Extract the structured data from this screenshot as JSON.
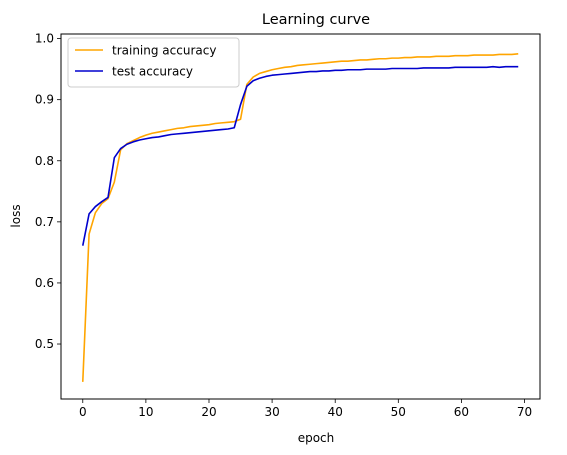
{
  "chart_data": {
    "type": "line",
    "title": "Learning curve",
    "xlabel": "epoch",
    "ylabel": "loss",
    "xlim": [
      -3.45,
      72.45
    ],
    "ylim": [
      0.41,
      1.0075
    ],
    "x_ticks": [
      0,
      10,
      20,
      30,
      40,
      50,
      60,
      70
    ],
    "y_ticks": [
      0.5,
      0.6,
      0.7,
      0.8,
      0.9,
      1.0
    ],
    "y_tick_labels": [
      "0.5",
      "0.6",
      "0.7",
      "0.8",
      "0.9",
      "1.0"
    ],
    "grid": false,
    "legend_position": "top-left",
    "x": [
      0,
      1,
      2,
      3,
      4,
      5,
      6,
      7,
      8,
      9,
      10,
      11,
      12,
      13,
      14,
      15,
      16,
      17,
      18,
      19,
      20,
      21,
      22,
      23,
      24,
      25,
      26,
      27,
      28,
      29,
      30,
      31,
      32,
      33,
      34,
      35,
      36,
      37,
      38,
      39,
      40,
      41,
      42,
      43,
      44,
      45,
      46,
      47,
      48,
      49,
      50,
      51,
      52,
      53,
      54,
      55,
      56,
      57,
      58,
      59,
      60,
      61,
      62,
      63,
      64,
      65,
      66,
      67,
      68,
      69
    ],
    "series": [
      {
        "name": "training accuracy",
        "color": "#FFA500",
        "values": [
          0.438,
          0.68,
          0.715,
          0.73,
          0.738,
          0.765,
          0.818,
          0.828,
          0.833,
          0.838,
          0.842,
          0.845,
          0.847,
          0.849,
          0.851,
          0.853,
          0.854,
          0.856,
          0.857,
          0.858,
          0.859,
          0.861,
          0.862,
          0.863,
          0.864,
          0.868,
          0.925,
          0.937,
          0.943,
          0.946,
          0.949,
          0.951,
          0.953,
          0.954,
          0.956,
          0.957,
          0.958,
          0.959,
          0.96,
          0.961,
          0.962,
          0.963,
          0.963,
          0.964,
          0.965,
          0.965,
          0.966,
          0.967,
          0.967,
          0.968,
          0.968,
          0.969,
          0.969,
          0.97,
          0.97,
          0.97,
          0.971,
          0.971,
          0.971,
          0.972,
          0.972,
          0.972,
          0.973,
          0.973,
          0.973,
          0.973,
          0.974,
          0.974,
          0.974,
          0.975
        ]
      },
      {
        "name": "test accuracy",
        "color": "#0000CD",
        "values": [
          0.661,
          0.713,
          0.725,
          0.733,
          0.74,
          0.805,
          0.82,
          0.827,
          0.831,
          0.834,
          0.836,
          0.838,
          0.839,
          0.841,
          0.843,
          0.844,
          0.845,
          0.846,
          0.847,
          0.848,
          0.849,
          0.85,
          0.851,
          0.852,
          0.854,
          0.892,
          0.922,
          0.931,
          0.935,
          0.938,
          0.94,
          0.941,
          0.942,
          0.943,
          0.944,
          0.945,
          0.946,
          0.946,
          0.947,
          0.947,
          0.948,
          0.948,
          0.949,
          0.949,
          0.949,
          0.95,
          0.95,
          0.95,
          0.95,
          0.951,
          0.951,
          0.951,
          0.951,
          0.951,
          0.952,
          0.952,
          0.952,
          0.952,
          0.952,
          0.953,
          0.953,
          0.953,
          0.953,
          0.953,
          0.953,
          0.954,
          0.953,
          0.954,
          0.954,
          0.954
        ]
      }
    ]
  }
}
